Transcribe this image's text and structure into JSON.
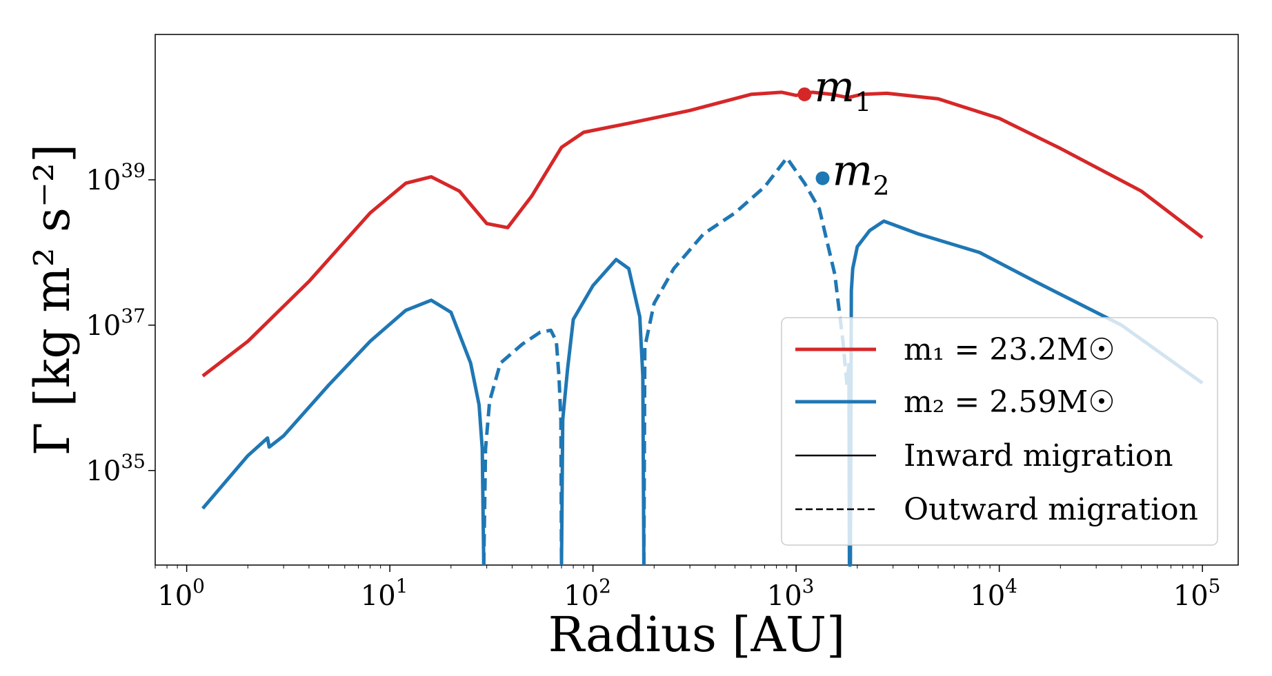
{
  "chart_data": {
    "type": "line",
    "title": "",
    "xlabel": "Radius [AU]",
    "ylabel": "Γ [kg m² s⁻²]",
    "xscale": "log",
    "yscale": "log",
    "xlim": [
      0.7,
      150000
    ],
    "ylim": [
      5e+33,
      1e+41
    ],
    "x_ticks": [
      {
        "value": 1,
        "base": "10",
        "exp": "0"
      },
      {
        "value": 10,
        "base": "10",
        "exp": "1"
      },
      {
        "value": 100,
        "base": "10",
        "exp": "2"
      },
      {
        "value": 1000,
        "base": "10",
        "exp": "3"
      },
      {
        "value": 10000,
        "base": "10",
        "exp": "4"
      },
      {
        "value": 100000,
        "base": "10",
        "exp": "5"
      }
    ],
    "y_ticks": [
      {
        "value": 1e+35,
        "base": "10",
        "exp": "35"
      },
      {
        "value": 1e+37,
        "base": "10",
        "exp": "37"
      },
      {
        "value": 1e+39,
        "base": "10",
        "exp": "39"
      }
    ],
    "colors": {
      "m1": "#d62728",
      "m2": "#1f77b4",
      "legend_style": "#000000"
    },
    "series": [
      {
        "name": "m1",
        "label": "m₁ = 23.2M☉",
        "style": "solid",
        "points": [
          [
            1.2,
            2e+36
          ],
          [
            2,
            6e+36
          ],
          [
            4,
            4e+37
          ],
          [
            8,
            3.5e+38
          ],
          [
            12,
            9e+38
          ],
          [
            16,
            1.1e+39
          ],
          [
            22,
            7e+38
          ],
          [
            30,
            2.5e+38
          ],
          [
            38,
            2.2e+38
          ],
          [
            50,
            6e+38
          ],
          [
            70,
            2.8e+39
          ],
          [
            90,
            4.5e+39
          ],
          [
            150,
            6e+39
          ],
          [
            300,
            9e+39
          ],
          [
            600,
            1.5e+40
          ],
          [
            850,
            1.6e+40
          ],
          [
            1000,
            1.45e+40
          ],
          [
            1200,
            1.6e+40
          ],
          [
            1500,
            1.5e+40
          ],
          [
            1800,
            1.35e+40
          ],
          [
            2100,
            1.5e+40
          ],
          [
            2800,
            1.55e+40
          ],
          [
            5000,
            1.3e+40
          ],
          [
            10000,
            7e+39
          ],
          [
            20000,
            2.7e+39
          ],
          [
            50000,
            7e+38
          ],
          [
            100000,
            1.6e+38
          ]
        ]
      },
      {
        "name": "m2",
        "label": "m₂ = 2.59M☉",
        "segments": [
          {
            "style": "solid",
            "points": [
              [
                1.2,
                3e+34
              ],
              [
                2,
                1.6e+35
              ],
              [
                2.5,
                2.8e+35
              ],
              [
                2.55,
                2.1e+35
              ],
              [
                3,
                3e+35
              ],
              [
                5,
                1.5e+36
              ],
              [
                8,
                6e+36
              ],
              [
                12,
                1.6e+37
              ],
              [
                16,
                2.2e+37
              ],
              [
                20,
                1.5e+37
              ],
              [
                25,
                3e+36
              ],
              [
                27.5,
                8e+35
              ],
              [
                28.5,
                2e+35
              ],
              [
                29,
                5e+33
              ]
            ]
          },
          {
            "style": "dashed",
            "points": [
              [
                29,
                5e+33
              ],
              [
                29.6,
                2e+35
              ],
              [
                31,
                9e+35
              ],
              [
                35,
                3e+36
              ],
              [
                45,
                5.5e+36
              ],
              [
                55,
                8e+36
              ],
              [
                62,
                8.5e+36
              ],
              [
                66,
                6e+36
              ],
              [
                68,
                2e+36
              ],
              [
                69.5,
                5e+35
              ],
              [
                70,
                5e+33
              ]
            ]
          },
          {
            "style": "solid",
            "points": [
              [
                70,
                5e+33
              ],
              [
                71,
                5e+35
              ],
              [
                75,
                2.5e+36
              ],
              [
                80,
                1.2e+37
              ],
              [
                100,
                3.5e+37
              ],
              [
                130,
                8e+37
              ],
              [
                150,
                6e+37
              ],
              [
                170,
                1.3e+37
              ],
              [
                176,
                2e+36
              ],
              [
                178,
                5e+33
              ]
            ]
          },
          {
            "style": "dashed",
            "points": [
              [
                178,
                5e+33
              ],
              [
                180,
                5e+36
              ],
              [
                200,
                2e+37
              ],
              [
                250,
                6e+37
              ],
              [
                350,
                1.8e+38
              ],
              [
                500,
                3.5e+38
              ],
              [
                700,
                8e+38
              ],
              [
                900,
                2e+39
              ],
              [
                1100,
                9e+38
              ],
              [
                1300,
                4e+38
              ],
              [
                1550,
                5e+37
              ],
              [
                1700,
                6e+36
              ],
              [
                1780,
                1.5e+36
              ],
              [
                1820,
                3e+36
              ]
            ]
          },
          {
            "style": "solid",
            "points": [
              [
                1820,
                3e+36
              ],
              [
                1830,
                5e+33
              ],
              [
                1850,
                5e+33
              ],
              [
                1870,
                3e+37
              ],
              [
                1900,
                6e+37
              ],
              [
                2000,
                1.2e+38
              ],
              [
                2300,
                2e+38
              ],
              [
                2700,
                2.7e+38
              ],
              [
                4000,
                1.8e+38
              ],
              [
                8000,
                1e+38
              ],
              [
                15000,
                4e+37
              ],
              [
                40000,
                1e+37
              ],
              [
                100000,
                1.6e+36
              ]
            ]
          }
        ]
      }
    ],
    "annotations": [
      {
        "series": "m1",
        "x": 1100,
        "y": 1.5e+40,
        "label_base": "m",
        "label_sub": "1"
      },
      {
        "series": "m2",
        "x": 1350,
        "y": 1.05e+39,
        "label_base": "m",
        "label_sub": "2"
      }
    ],
    "legend": {
      "position": "lower-right",
      "entries": [
        {
          "key": "m1",
          "style": "solid",
          "color_key": "m1",
          "text": "m₁ = 23.2M☉"
        },
        {
          "key": "m2",
          "style": "solid",
          "color_key": "m2",
          "text": "m₂ = 2.59M☉"
        },
        {
          "key": "inward",
          "style": "solid",
          "color_key": "legend_style",
          "text": "Inward migration"
        },
        {
          "key": "outward",
          "style": "dashed",
          "color_key": "legend_style",
          "text": "Outward migration"
        }
      ]
    }
  }
}
